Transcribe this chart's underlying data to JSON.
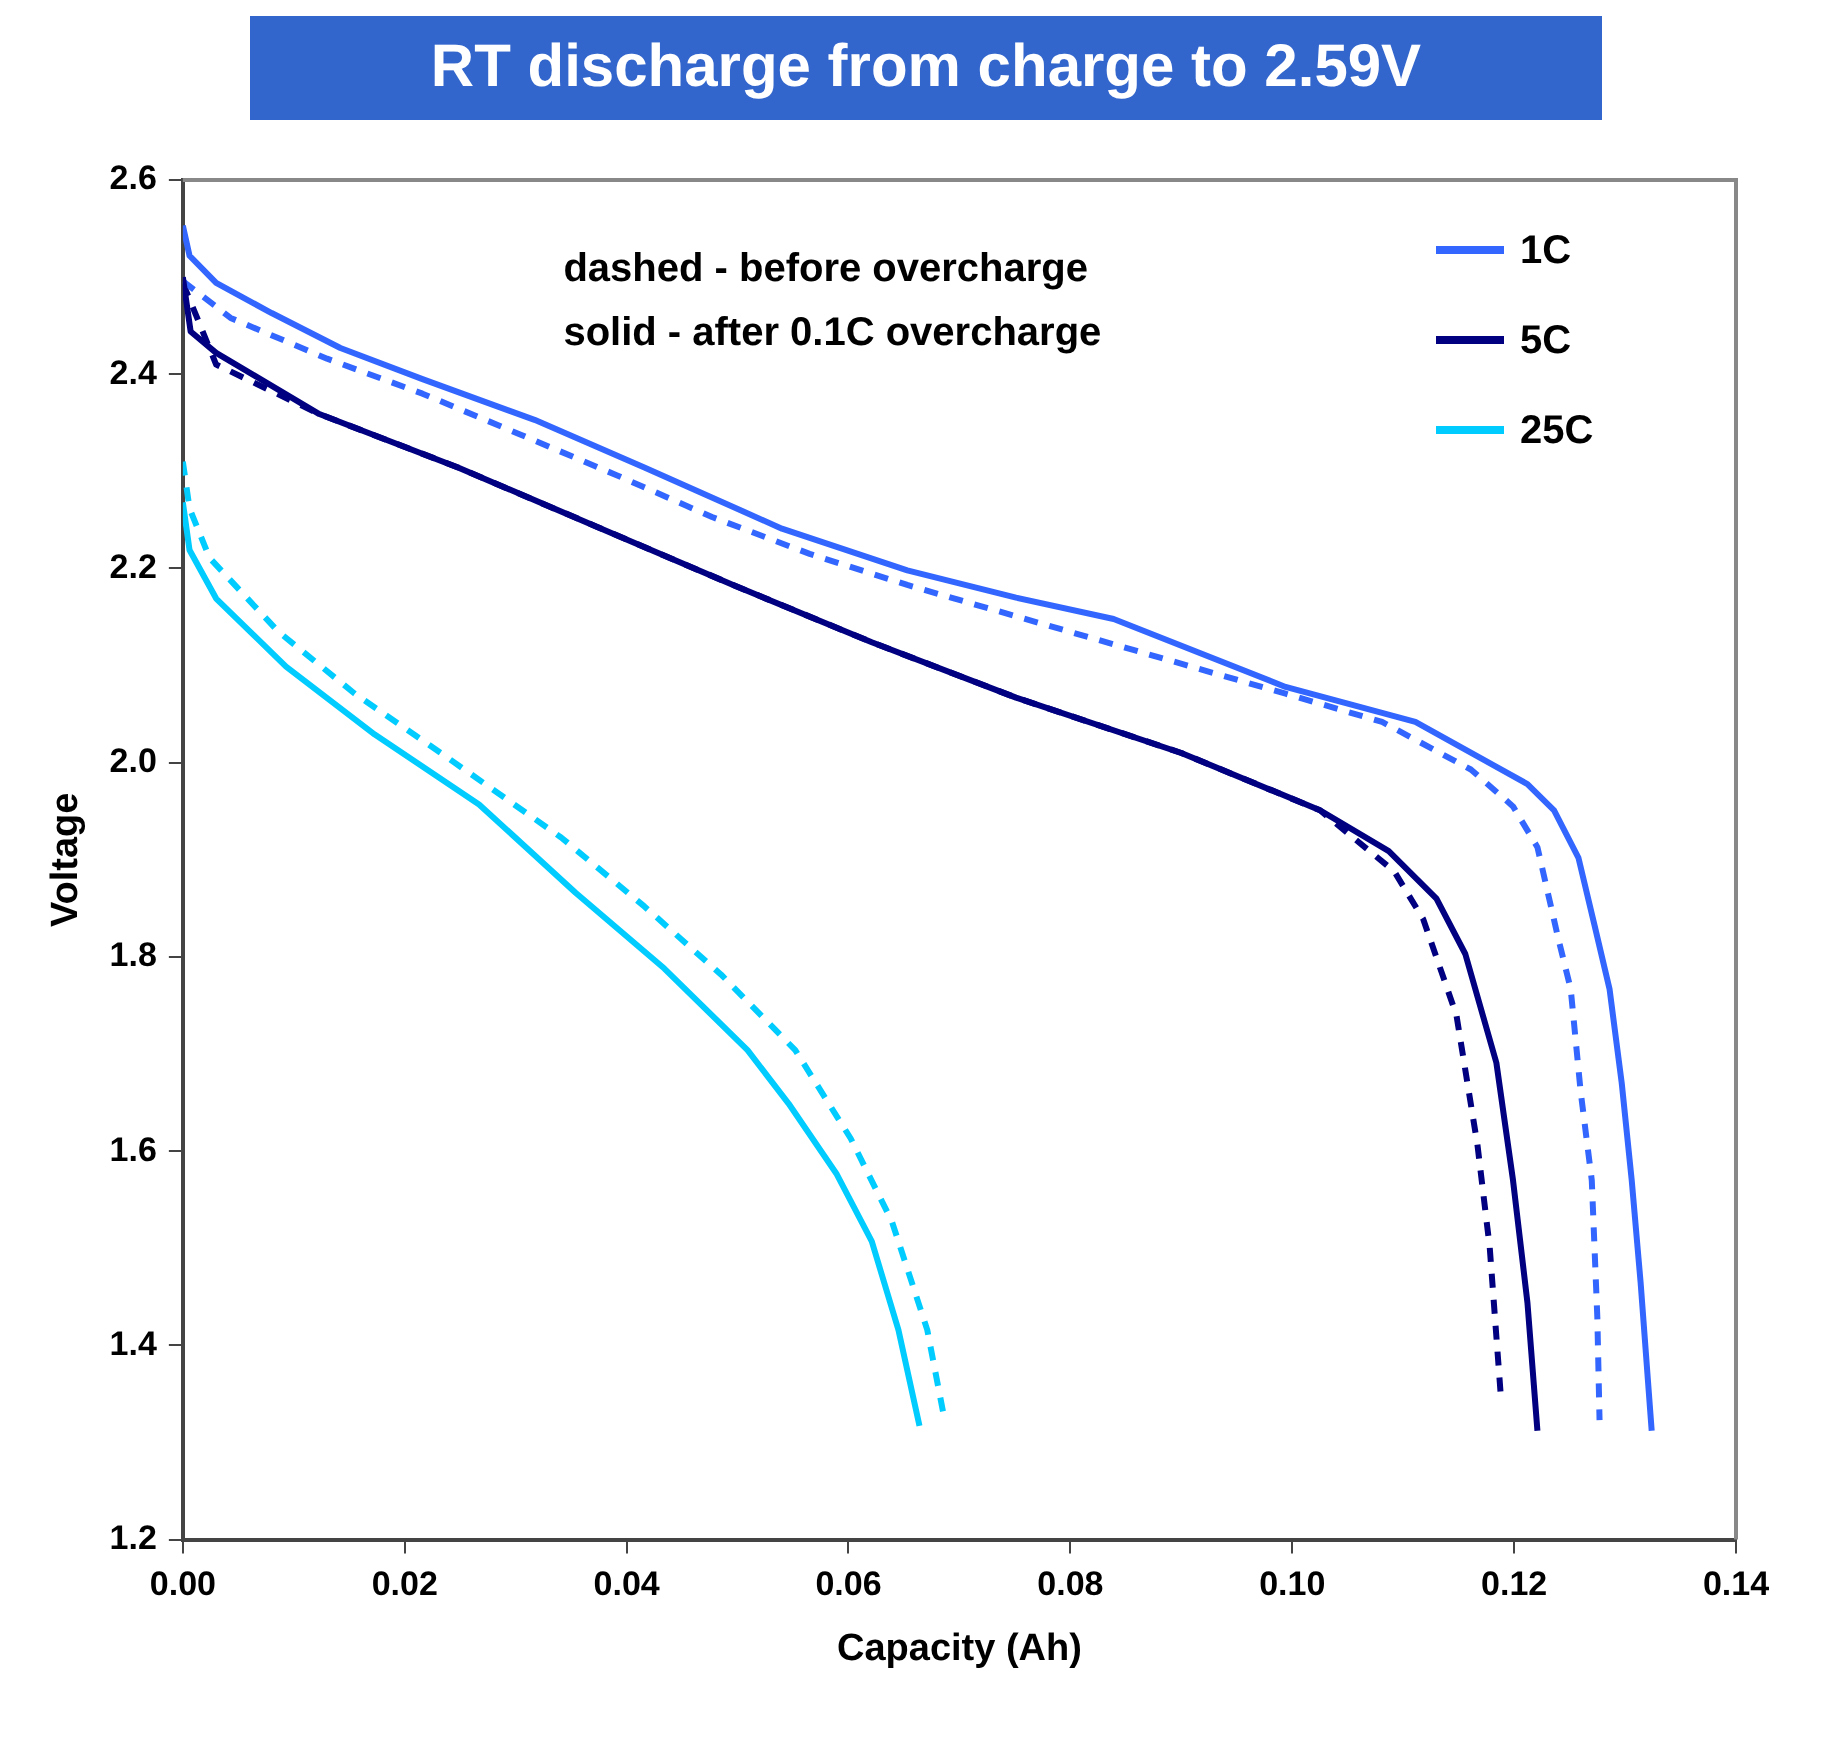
{
  "chart_data": {
    "type": "line",
    "title": "RT discharge from charge to 2.59V",
    "xlabel": "Capacity (Ah)",
    "ylabel": "Voltage",
    "annotations": [
      "dashed - before overcharge",
      "solid - after 0.1C overcharge"
    ],
    "xlim": [
      0,
      0.14
    ],
    "xticks": [
      {
        "value": 0,
        "label": "0.00"
      },
      {
        "value": 0.02,
        "label": "0.02"
      },
      {
        "value": 0.04,
        "label": "0.04"
      },
      {
        "value": 0.06,
        "label": "0.06"
      },
      {
        "value": 0.08,
        "label": "0.08"
      },
      {
        "value": 0.1,
        "label": "0.10"
      },
      {
        "value": 0.12,
        "label": "0.12"
      },
      {
        "value": 0.14,
        "label": "0.14"
      }
    ],
    "ylim": [
      1.2,
      2.6
    ],
    "yticks": [
      {
        "value": 1.2,
        "label": "1.2"
      },
      {
        "value": 1.4,
        "label": "1.4"
      },
      {
        "value": 1.6,
        "label": "1.6"
      },
      {
        "value": 1.8,
        "label": "1.8"
      },
      {
        "value": 2.0,
        "label": "2.0"
      },
      {
        "value": 2.2,
        "label": "2.2"
      },
      {
        "value": 2.4,
        "label": "2.4"
      },
      {
        "value": 2.6,
        "label": "2.6"
      }
    ],
    "grid": false,
    "legend": "top right",
    "marker": "none",
    "series": [
      {
        "name": "1C",
        "color": "#3366ff",
        "line_style": "solid",
        "x": [
          0,
          0.0006,
          0.003,
          0.008,
          0.0142,
          0.0216,
          0.0317,
          0.0416,
          0.054,
          0.0653,
          0.0751,
          0.0839,
          0.0994,
          0.1111,
          0.1212,
          0.1236,
          0.1258,
          0.1273,
          0.1286,
          0.1297,
          0.1306,
          0.1314,
          0.1324
        ],
        "values": [
          2.553,
          2.522,
          2.494,
          2.463,
          2.427,
          2.395,
          2.353,
          2.304,
          2.241,
          2.198,
          2.17,
          2.148,
          2.078,
          2.042,
          1.978,
          1.951,
          1.902,
          1.83,
          1.767,
          1.67,
          1.57,
          1.465,
          1.312
        ]
      },
      {
        "name": "5C",
        "color": "#000080",
        "line_style": "solid",
        "x": [
          0,
          0.0007,
          0.003,
          0.0123,
          0.0248,
          0.0373,
          0.0496,
          0.0621,
          0.0751,
          0.09,
          0.1025,
          0.1087,
          0.113,
          0.1156,
          0.1184,
          0.1199,
          0.1212,
          0.1221
        ],
        "values": [
          2.5,
          2.444,
          2.422,
          2.359,
          2.304,
          2.243,
          2.183,
          2.124,
          2.067,
          2.01,
          1.951,
          1.909,
          1.86,
          1.803,
          1.691,
          1.57,
          1.444,
          1.312
        ]
      },
      {
        "name": "25C",
        "color": "#00ccff",
        "line_style": "solid",
        "x": [
          0,
          0.0006,
          0.003,
          0.0093,
          0.0173,
          0.0267,
          0.0354,
          0.0434,
          0.0509,
          0.0546,
          0.0589,
          0.0621,
          0.0645,
          0.0664
        ],
        "values": [
          2.268,
          2.219,
          2.169,
          2.099,
          2.029,
          1.957,
          1.866,
          1.788,
          1.704,
          1.649,
          1.577,
          1.507,
          1.416,
          1.317
        ]
      },
      {
        "color": "#3366ff",
        "line_style": "dashed",
        "x": [
          0,
          0.0043,
          0.013,
          0.0216,
          0.0304,
          0.0391,
          0.0477,
          0.0565,
          0.0653,
          0.0735,
          0.0863,
          0.0994,
          0.1081,
          0.1161,
          0.1199,
          0.1221,
          0.124,
          0.1251,
          0.126,
          0.127,
          0.1275,
          0.1277
        ],
        "values": [
          2.496,
          2.458,
          2.416,
          2.38,
          2.338,
          2.296,
          2.253,
          2.215,
          2.183,
          2.156,
          2.114,
          2.071,
          2.042,
          1.993,
          1.955,
          1.913,
          1.818,
          1.767,
          1.661,
          1.57,
          1.429,
          1.323
        ]
      },
      {
        "color": "#000080",
        "line_style": "dashed",
        "x": [
          0,
          0.003,
          0.0123,
          0.0248,
          0.0373,
          0.0496,
          0.0621,
          0.0751,
          0.09,
          0.1025,
          0.1092,
          0.1118,
          0.1148,
          0.1167,
          0.1178,
          0.1188
        ],
        "values": [
          2.494,
          2.41,
          2.359,
          2.304,
          2.243,
          2.183,
          2.124,
          2.067,
          2.01,
          1.951,
          1.888,
          1.839,
          1.74,
          1.606,
          1.501,
          1.348
        ]
      },
      {
        "color": "#00ccff",
        "line_style": "dashed",
        "x": [
          0,
          0.0006,
          0.0024,
          0.0086,
          0.0155,
          0.0235,
          0.0341,
          0.0416,
          0.0485,
          0.0552,
          0.0602,
          0.0639,
          0.0671,
          0.0686
        ],
        "values": [
          2.31,
          2.262,
          2.211,
          2.135,
          2.071,
          2.008,
          1.923,
          1.852,
          1.782,
          1.704,
          1.613,
          1.528,
          1.416,
          1.327
        ]
      }
    ]
  }
}
